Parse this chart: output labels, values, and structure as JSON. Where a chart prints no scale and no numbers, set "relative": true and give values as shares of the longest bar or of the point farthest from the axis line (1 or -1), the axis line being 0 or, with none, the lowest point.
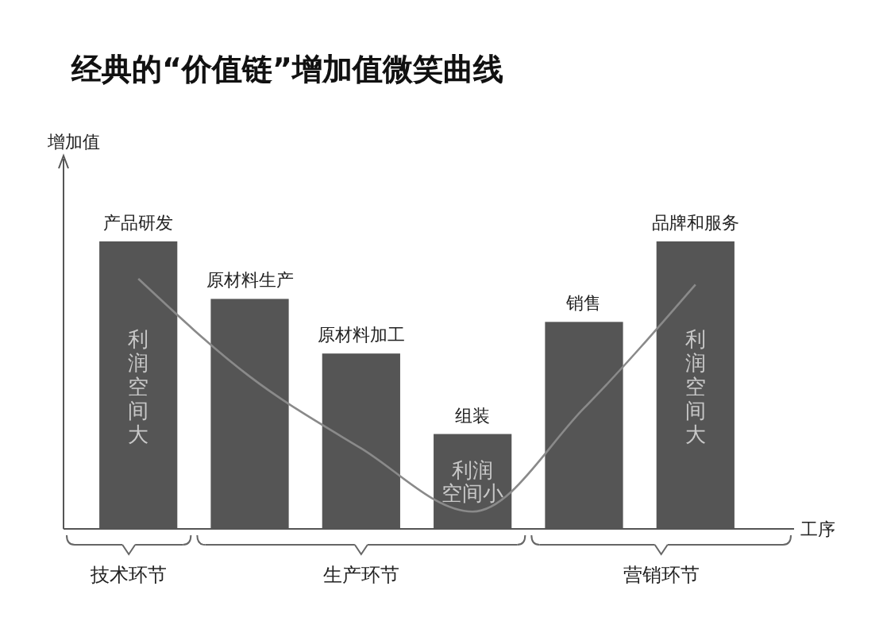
{
  "chart_data": {
    "type": "bar",
    "title": "经典的“价值链”增加值微笑曲线",
    "ylabel": "增加值",
    "xlabel": "工序",
    "relative": true,
    "categories": [
      "产品研发",
      "原材料生产",
      "原材料加工",
      "组装",
      "销售",
      "品牌和服务"
    ],
    "series": [
      {
        "type": "bar",
        "color": "#555555",
        "values": [
          1,
          0.8,
          0.61,
          0.33,
          0.72,
          1
        ]
      },
      {
        "type": "line",
        "color": "#8a8a8a",
        "values": [
          0.87,
          0.53,
          0.28,
          0.06,
          0.42,
          0.85
        ]
      }
    ],
    "annotations": [
      "利润空间大",
      "利润空间小",
      "利润空间大",
      "技术环节",
      "生产环节",
      "营销环节"
    ]
  }
}
